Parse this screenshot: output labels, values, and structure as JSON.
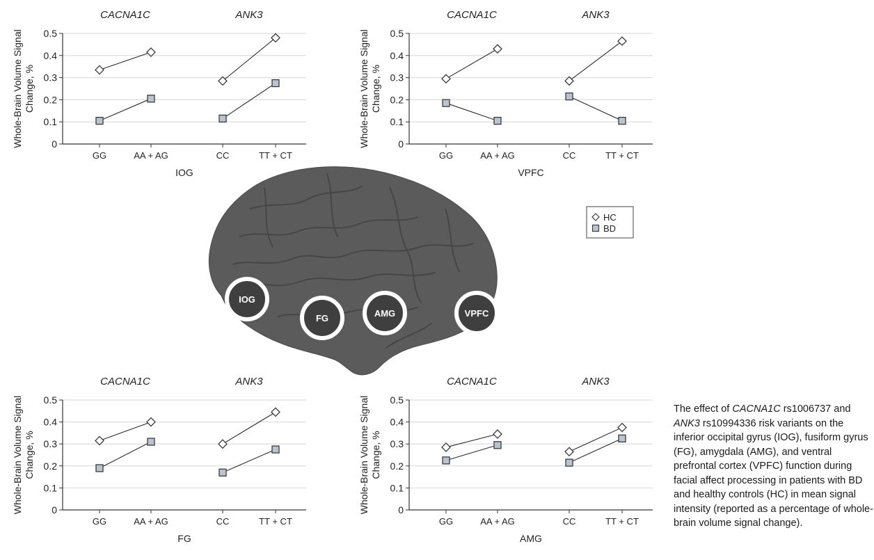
{
  "caption": {
    "parts": [
      {
        "text": "The effect of ",
        "italic": false
      },
      {
        "text": "CACNA1C",
        "italic": true
      },
      {
        "text": " rs1006737 and ",
        "italic": false
      },
      {
        "text": "ANK3",
        "italic": true
      },
      {
        "text": " rs10994336 risk variants on the inferior occipital gyrus (IOG), fusiform gyrus (FG), amygdala (AMG), and ventral prefrontal cortex (VPFC) function during facial affect processing in patients with BD and healthy controls (HC) in mean signal intensity (reported as a percentage of whole-brain volume signal change).",
        "italic": false
      }
    ]
  },
  "legend": {
    "items": [
      {
        "label": "HC",
        "marker": "diamond"
      },
      {
        "label": "BD",
        "marker": "square"
      }
    ]
  },
  "brain_regions": [
    "IOG",
    "FG",
    "AMG",
    "VPFC"
  ],
  "colors": {
    "hc_fill": "#ffffff",
    "marker_stroke": "#3a3a3a",
    "bd_fill": "#bcc3cc",
    "brain": "#5b5b5b",
    "region_ring": "#ffffff",
    "gridline": "#d6d6d6"
  },
  "chart_data": [
    {
      "type": "line",
      "region": "IOG",
      "xlabel": "IOG",
      "ylabel": "Whole-Brain Volume Signal Change, %",
      "ylim": [
        0,
        0.5
      ],
      "yticks": [
        "0",
        "0.1",
        "0.2",
        "0.3",
        "0.4",
        "0.5"
      ],
      "grid": true,
      "gene_labels": [
        "CACNA1C",
        "ANK3"
      ],
      "categories": [
        "GG",
        "AA + AG",
        "CC",
        "TT + CT"
      ],
      "series": [
        {
          "name": "HC",
          "values": [
            0.335,
            0.415,
            0.285,
            0.48
          ]
        },
        {
          "name": "BD",
          "values": [
            0.105,
            0.205,
            0.115,
            0.275
          ]
        }
      ]
    },
    {
      "type": "line",
      "region": "VPFC",
      "xlabel": "VPFC",
      "ylabel": "Whole-Brain Volume Signal Change, %",
      "ylim": [
        0,
        0.5
      ],
      "yticks": [
        "0",
        "0.1",
        "0.2",
        "0.3",
        "0.4",
        "0.5"
      ],
      "grid": true,
      "gene_labels": [
        "CACNA1C",
        "ANK3"
      ],
      "categories": [
        "GG",
        "AA + AG",
        "CC",
        "TT + CT"
      ],
      "series": [
        {
          "name": "HC",
          "values": [
            0.295,
            0.43,
            0.285,
            0.465
          ]
        },
        {
          "name": "BD",
          "values": [
            0.185,
            0.105,
            0.215,
            0.105
          ]
        }
      ]
    },
    {
      "type": "line",
      "region": "FG",
      "xlabel": "FG",
      "ylabel": "Whole-Brain Volume Signal Change, %",
      "ylim": [
        0,
        0.5
      ],
      "yticks": [
        "0",
        "0.1",
        "0.2",
        "0.3",
        "0.4",
        "0.5"
      ],
      "grid": true,
      "gene_labels": [
        "CACNA1C",
        "ANK3"
      ],
      "categories": [
        "GG",
        "AA + AG",
        "CC",
        "TT + CT"
      ],
      "series": [
        {
          "name": "HC",
          "values": [
            0.315,
            0.4,
            0.3,
            0.445
          ]
        },
        {
          "name": "BD",
          "values": [
            0.19,
            0.31,
            0.17,
            0.275
          ]
        }
      ]
    },
    {
      "type": "line",
      "region": "AMG",
      "xlabel": "AMG",
      "ylabel": "Whole-Brain Volume Signal Change, %",
      "ylim": [
        0,
        0.5
      ],
      "yticks": [
        "0",
        "0.1",
        "0.2",
        "0.3",
        "0.4",
        "0.5"
      ],
      "grid": true,
      "gene_labels": [
        "CACNA1C",
        "ANK3"
      ],
      "categories": [
        "GG",
        "AA + AG",
        "CC",
        "TT + CT"
      ],
      "series": [
        {
          "name": "HC",
          "values": [
            0.285,
            0.345,
            0.265,
            0.375
          ]
        },
        {
          "name": "BD",
          "values": [
            0.225,
            0.295,
            0.215,
            0.325
          ]
        }
      ]
    }
  ]
}
